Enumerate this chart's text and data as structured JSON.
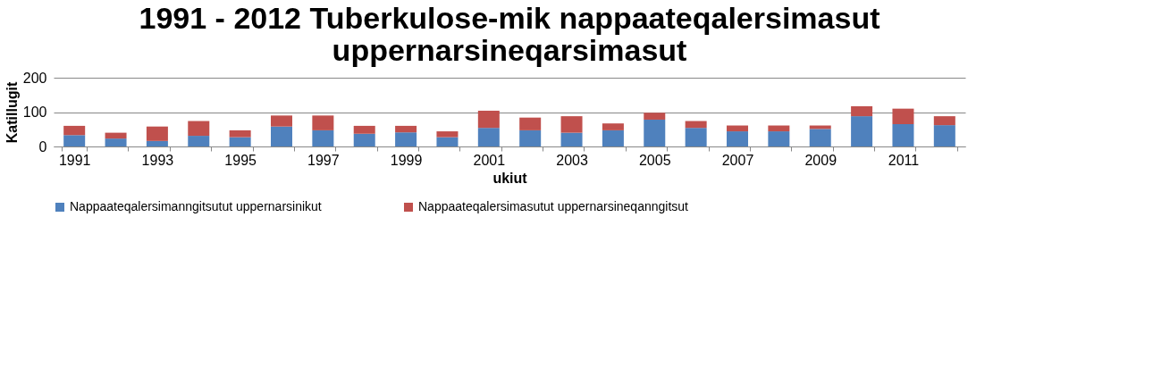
{
  "chart_data": {
    "type": "bar",
    "stacked": true,
    "title": [
      "1991 - 2012 Tuberkulose-mik nappaateqalersimasut",
      "uppernarsineqarsimasut"
    ],
    "xlabel": "ukiut",
    "ylabel": "Katillugit",
    "categories": [
      "1991",
      null,
      "1993",
      null,
      "1995",
      null,
      "1997",
      null,
      "1999",
      null,
      "2001",
      null,
      "2003",
      null,
      "2005",
      null,
      "2007",
      null,
      "2009",
      null,
      "2011",
      null
    ],
    "series": [
      {
        "name": "Nappaateqalersimanngitsutut uppernarsinikut",
        "color": "#4f81bd",
        "values": [
          33,
          23,
          16,
          31,
          27,
          58,
          47,
          37,
          41,
          27,
          54,
          47,
          40,
          47,
          78,
          54,
          44,
          44,
          51,
          88,
          65,
          62
        ]
      },
      {
        "name": "Nappaateqalersimasutut uppernarsineqanngitsut",
        "color": "#c0504d",
        "values": [
          27,
          17,
          42,
          43,
          20,
          32,
          43,
          23,
          19,
          17,
          50,
          37,
          48,
          20,
          20,
          20,
          17,
          17,
          10,
          29,
          45,
          26
        ]
      }
    ],
    "ylim": [
      0,
      200
    ],
    "yticks": [
      0,
      100,
      200
    ],
    "grid": "y",
    "legend": "bottom"
  }
}
